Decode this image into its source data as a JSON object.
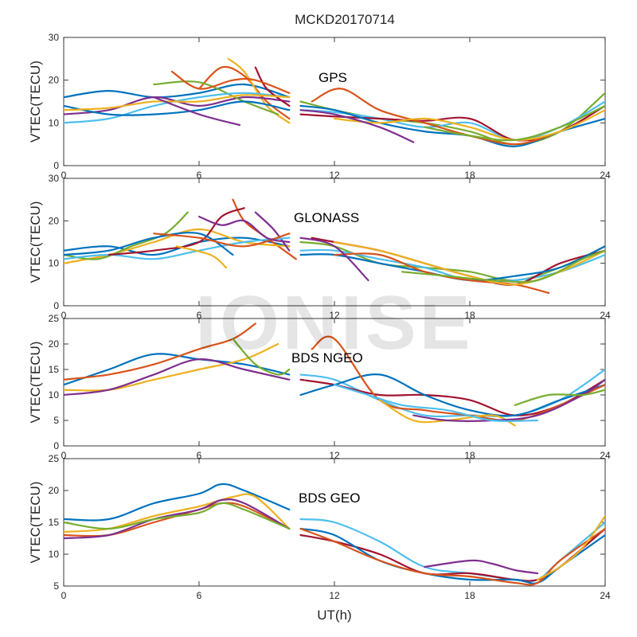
{
  "title": "MCKD20170714",
  "watermark": "IONISE",
  "colors": [
    "#0072BD",
    "#D95319",
    "#EDB120",
    "#7E2F8E",
    "#77AC30",
    "#4DBEEE",
    "#A2142F"
  ],
  "chart_data": [
    {
      "type": "line",
      "annotation": "GPS",
      "ylabel": "VTEC(TECU)",
      "xlim": [
        0,
        24
      ],
      "ylim": [
        0,
        30
      ],
      "xticks": [
        0,
        6,
        12,
        18,
        24
      ],
      "yticks": [
        0,
        10,
        20,
        30
      ],
      "series": [
        {
          "x": [
            0,
            2,
            4,
            6,
            8,
            10
          ],
          "y": [
            16,
            17.5,
            16,
            17,
            19,
            16
          ]
        },
        {
          "x": [
            6,
            7,
            8,
            9,
            10
          ],
          "y": [
            18,
            23,
            21,
            15,
            11
          ]
        },
        {
          "x": [
            7.3,
            8,
            9,
            10
          ],
          "y": [
            25,
            22,
            14,
            10
          ]
        },
        {
          "x": [
            0,
            2,
            4,
            6,
            8,
            10
          ],
          "y": [
            12,
            13,
            16,
            14,
            16,
            15
          ]
        },
        {
          "x": [
            4,
            6,
            8,
            9.5
          ],
          "y": [
            19,
            19.5,
            15,
            12
          ]
        },
        {
          "x": [
            0,
            2,
            4,
            6,
            8,
            10
          ],
          "y": [
            10,
            11,
            14,
            16,
            17,
            16
          ]
        },
        {
          "x": [
            8.5,
            9,
            10
          ],
          "y": [
            23,
            18,
            14
          ]
        },
        {
          "x": [
            0,
            2,
            4,
            6,
            8,
            10
          ],
          "y": [
            14,
            12,
            12,
            13,
            15,
            13
          ]
        },
        {
          "x": [
            4.8,
            6,
            7.5,
            8.5,
            10
          ],
          "y": [
            22,
            18,
            20,
            20,
            17
          ]
        },
        {
          "x": [
            0,
            2,
            4,
            6,
            8,
            10
          ],
          "y": [
            13,
            13.5,
            15,
            15,
            16.5,
            16
          ]
        },
        {
          "x": [
            4,
            6,
            7.8
          ],
          "y": [
            16,
            12,
            9.5
          ]
        },
        {
          "x": [
            10.5,
            12,
            14,
            16,
            18,
            20,
            22,
            24
          ],
          "y": [
            15,
            13,
            11,
            10,
            8,
            5,
            8,
            17
          ]
        },
        {
          "x": [
            10.5,
            12,
            14,
            16,
            18,
            20,
            22,
            24
          ],
          "y": [
            13,
            12.5,
            11,
            9,
            10,
            6,
            9,
            15
          ]
        },
        {
          "x": [
            10.5,
            12,
            14,
            16,
            18,
            20,
            22,
            24
          ],
          "y": [
            12,
            11.5,
            11,
            10.5,
            11,
            6,
            8,
            14
          ]
        },
        {
          "x": [
            10.5,
            12,
            14,
            16,
            18,
            20,
            22,
            24
          ],
          "y": [
            14,
            13,
            10,
            8,
            7,
            4.5,
            8,
            11
          ]
        },
        {
          "x": [
            11,
            12.3,
            14,
            16,
            18,
            20,
            21.5
          ],
          "y": [
            15,
            18,
            13,
            10,
            7,
            5,
            7
          ]
        },
        {
          "x": [
            12,
            14,
            16,
            18,
            20,
            22,
            24
          ],
          "y": [
            11,
            10,
            11,
            9,
            6,
            8,
            13
          ]
        },
        {
          "x": [
            10.5,
            12,
            14,
            15.5
          ],
          "y": [
            13,
            12,
            9,
            5.5
          ]
        },
        {
          "x": [
            16,
            18,
            20,
            22,
            24
          ],
          "y": [
            9,
            7,
            6,
            9,
            14
          ]
        }
      ]
    },
    {
      "type": "line",
      "annotation": "GLONASS",
      "ylabel": "VTEC(TECU)",
      "xlim": [
        0,
        24
      ],
      "ylim": [
        0,
        30
      ],
      "xticks": [
        0,
        6,
        12,
        18,
        24
      ],
      "yticks": [
        0,
        10,
        20,
        30
      ],
      "series": [
        {
          "x": [
            0,
            2,
            4,
            6,
            8,
            10
          ],
          "y": [
            13,
            14,
            12,
            15,
            16,
            14
          ]
        },
        {
          "x": [
            7.5,
            8,
            9,
            10.3
          ],
          "y": [
            25,
            20,
            16,
            11
          ]
        },
        {
          "x": [
            0,
            2,
            4,
            6,
            8,
            10
          ],
          "y": [
            10,
            12,
            15,
            18,
            15,
            14
          ]
        },
        {
          "x": [
            8.5,
            9.3,
            10
          ],
          "y": [
            22,
            18,
            13
          ]
        },
        {
          "x": [
            0,
            1.5,
            3,
            4.5,
            5.5
          ],
          "y": [
            12,
            11,
            14,
            17,
            22
          ]
        },
        {
          "x": [
            0,
            2,
            4,
            6,
            8,
            10
          ],
          "y": [
            11,
            12,
            11,
            13,
            15,
            16
          ]
        },
        {
          "x": [
            2,
            4,
            6,
            7,
            8
          ],
          "y": [
            12,
            13,
            15,
            21,
            23
          ]
        },
        {
          "x": [
            0,
            2,
            4,
            6,
            7.5
          ],
          "y": [
            12,
            13,
            16,
            17,
            12
          ]
        },
        {
          "x": [
            4,
            6,
            8,
            10
          ],
          "y": [
            17,
            16,
            14,
            17
          ]
        },
        {
          "x": [
            5,
            6.5,
            7.2
          ],
          "y": [
            14,
            12,
            9
          ]
        },
        {
          "x": [
            6,
            7,
            8,
            9,
            10
          ],
          "y": [
            21,
            19,
            20,
            16,
            15
          ]
        },
        {
          "x": [
            10.5,
            12,
            14,
            16,
            18,
            20,
            22,
            24
          ],
          "y": [
            15,
            14,
            10,
            9,
            8,
            6,
            9,
            14
          ]
        },
        {
          "x": [
            10.5,
            12,
            14,
            16,
            18,
            20,
            22,
            24
          ],
          "y": [
            13,
            13,
            11,
            9,
            6,
            6,
            8,
            12
          ]
        },
        {
          "x": [
            11,
            12,
            14,
            16,
            18,
            20,
            22,
            24
          ],
          "y": [
            16,
            15,
            13,
            10,
            7,
            5,
            10,
            13
          ]
        },
        {
          "x": [
            10.5,
            12,
            14,
            16,
            18,
            20,
            22,
            24
          ],
          "y": [
            12,
            12,
            10,
            8,
            6,
            7,
            9,
            14
          ]
        },
        {
          "x": [
            12,
            14,
            16,
            18,
            20,
            21.5
          ],
          "y": [
            12,
            12,
            8,
            6,
            5,
            3
          ]
        },
        {
          "x": [
            12,
            14,
            16,
            18,
            20,
            22,
            24
          ],
          "y": [
            15,
            13,
            10,
            7,
            5,
            8,
            13
          ]
        },
        {
          "x": [
            10.5,
            12,
            13.5
          ],
          "y": [
            16,
            14,
            6
          ]
        },
        {
          "x": [
            15,
            17,
            19,
            21,
            23,
            24
          ],
          "y": [
            8,
            7,
            6,
            6,
            11,
            13
          ]
        }
      ]
    },
    {
      "type": "line",
      "annotation": "BDS NGEO",
      "ylabel": "VTEC(TECU)",
      "xlim": [
        0,
        24
      ],
      "ylim": [
        0,
        25
      ],
      "xticks": [
        0,
        6,
        12,
        18,
        24
      ],
      "yticks": [
        0,
        5,
        10,
        15,
        20,
        25
      ],
      "series": [
        {
          "x": [
            0,
            2,
            4,
            6,
            8,
            10
          ],
          "y": [
            12,
            15,
            18,
            17,
            16,
            14
          ]
        },
        {
          "x": [
            0,
            2,
            4,
            6,
            7.5,
            8.5
          ],
          "y": [
            13,
            14,
            16,
            19,
            21,
            24
          ]
        },
        {
          "x": [
            0,
            2,
            4,
            6,
            8,
            9.5
          ],
          "y": [
            11,
            11,
            13,
            15,
            17,
            20
          ]
        },
        {
          "x": [
            0,
            2,
            4,
            6,
            8,
            10
          ],
          "y": [
            10,
            11,
            14,
            17,
            15,
            13
          ]
        },
        {
          "x": [
            7.5,
            8.5,
            9.5,
            10
          ],
          "y": [
            21,
            16,
            14,
            15
          ]
        },
        {
          "x": [
            10.5,
            12,
            14,
            16,
            18,
            20,
            22,
            24
          ],
          "y": [
            14,
            13,
            9,
            6,
            6,
            6,
            9,
            15
          ]
        },
        {
          "x": [
            10.5,
            12,
            14,
            16,
            18,
            20,
            22,
            24
          ],
          "y": [
            13,
            12,
            10,
            10,
            9,
            6,
            8,
            13
          ]
        },
        {
          "x": [
            10.5,
            12,
            14,
            16,
            18,
            20,
            22,
            24
          ],
          "y": [
            10,
            12,
            14,
            10,
            7,
            6,
            9,
            12
          ]
        },
        {
          "x": [
            11,
            12,
            14,
            16,
            18,
            20,
            22,
            24
          ],
          "y": [
            19,
            21,
            9,
            7,
            6,
            5,
            8,
            12
          ]
        },
        {
          "x": [
            14,
            15.5,
            17,
            19,
            20
          ],
          "y": [
            9,
            5,
            5,
            6,
            4
          ]
        },
        {
          "x": [
            15.5,
            17,
            19,
            21,
            23,
            24
          ],
          "y": [
            6,
            5,
            5,
            6,
            10,
            13
          ]
        },
        {
          "x": [
            20,
            21.5,
            23,
            24
          ],
          "y": [
            8,
            10,
            10,
            11
          ]
        },
        {
          "x": [
            12,
            13.5,
            15,
            17,
            19,
            21
          ],
          "y": [
            12,
            10,
            8,
            7,
            5,
            5
          ]
        }
      ]
    },
    {
      "type": "line",
      "annotation": "BDS GEO",
      "ylabel": "VTEC(TECU)",
      "xlim": [
        0,
        24
      ],
      "ylim": [
        5,
        25
      ],
      "xticks": [
        0,
        6,
        12,
        18,
        24
      ],
      "yticks": [
        5,
        10,
        15,
        20,
        25
      ],
      "xlabel": "UT(h)",
      "series": [
        {
          "x": [
            0,
            2,
            4,
            6,
            7,
            8,
            10
          ],
          "y": [
            15.5,
            15.5,
            18,
            19.5,
            21,
            20,
            17
          ]
        },
        {
          "x": [
            0,
            2,
            4,
            6,
            7,
            8,
            10
          ],
          "y": [
            13,
            13,
            15,
            17,
            18,
            17.5,
            14
          ]
        },
        {
          "x": [
            0,
            2,
            4,
            6,
            7.5,
            8.5,
            10
          ],
          "y": [
            13.5,
            14,
            16,
            17.5,
            19,
            19,
            14
          ]
        },
        {
          "x": [
            0,
            2,
            4,
            6,
            7,
            8,
            10
          ],
          "y": [
            12.5,
            13,
            15.5,
            17,
            18.5,
            18,
            14
          ]
        },
        {
          "x": [
            0,
            2,
            4,
            6,
            7,
            8,
            10
          ],
          "y": [
            15,
            14,
            15.5,
            16.5,
            18,
            17,
            14
          ]
        },
        {
          "x": [
            10.5,
            12,
            14,
            16,
            18,
            20,
            21,
            22,
            24
          ],
          "y": [
            15.5,
            15,
            12,
            8,
            7,
            6,
            6,
            9,
            15
          ]
        },
        {
          "x": [
            10.5,
            12,
            14,
            16,
            18,
            20,
            21,
            22,
            24
          ],
          "y": [
            13,
            12,
            10,
            7,
            7,
            6,
            6,
            8,
            14
          ]
        },
        {
          "x": [
            10.5,
            12,
            14,
            16,
            18,
            20,
            21,
            22,
            24
          ],
          "y": [
            14,
            13,
            9,
            7,
            6,
            6,
            5.5,
            8,
            13
          ]
        },
        {
          "x": [
            10.5,
            12,
            14,
            16,
            18,
            20,
            21,
            22,
            24
          ],
          "y": [
            14,
            12,
            9,
            7,
            6.5,
            5.5,
            5.5,
            9,
            14
          ]
        },
        {
          "x": [
            21,
            22,
            23,
            24
          ],
          "y": [
            6,
            8,
            11,
            16
          ]
        },
        {
          "x": [
            16,
            18,
            19,
            20,
            21
          ],
          "y": [
            8,
            9,
            8.5,
            7.5,
            7
          ]
        }
      ]
    }
  ]
}
